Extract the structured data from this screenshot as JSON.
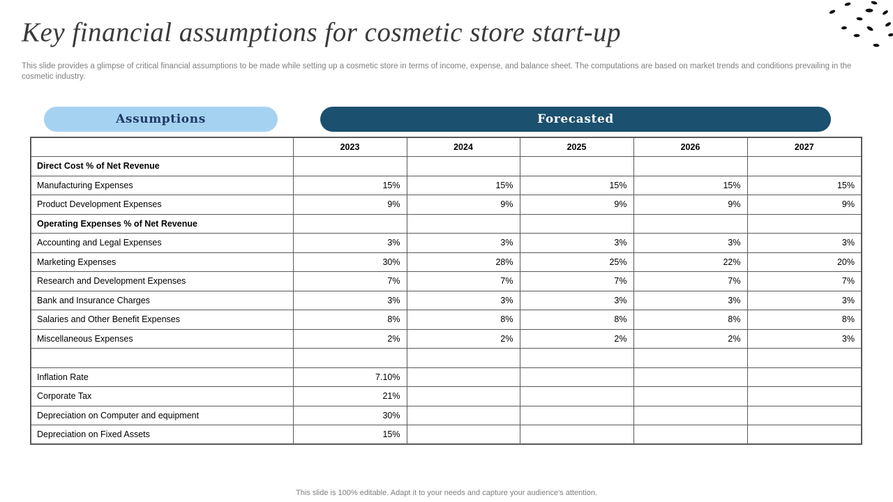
{
  "slide": {
    "title": "Key financial assumptions for cosmetic store start-up",
    "subtitle": "This slide provides a glimpse of critical financial assumptions to be made while setting up a cosmetic store in terms of income, expense, and balance sheet. The computations are based on market trends and conditions prevailing in the cosmetic industry.",
    "footer": "This slide is 100% editable. Adapt it to your needs and capture your audience's attention."
  },
  "legend": {
    "assumptions_label": "Assumptions",
    "forecasted_label": "Forecasted"
  },
  "colors": {
    "light_pill_bg": "#A6D2F2",
    "light_pill_text": "#1F3864",
    "dark_pill_bg": "#1B506F",
    "dark_pill_text": "#FDFDFD",
    "title_color": "#3B3B3B",
    "muted_text": "#7F7F7F",
    "table_border": "#595959"
  },
  "chart_data": {
    "type": "table",
    "columns": [
      "",
      "2023",
      "2024",
      "2025",
      "2026",
      "2027"
    ],
    "rows": [
      {
        "label": "Direct Cost % of Net Revenue",
        "bold": true,
        "values": [
          "",
          "",
          "",
          "",
          ""
        ]
      },
      {
        "label": "Manufacturing Expenses",
        "bold": false,
        "values": [
          "15%",
          "15%",
          "15%",
          "15%",
          "15%"
        ]
      },
      {
        "label": "Product Development Expenses",
        "bold": false,
        "values": [
          "9%",
          "9%",
          "9%",
          "9%",
          "9%"
        ]
      },
      {
        "label": "Operating Expenses % of Net Revenue",
        "bold": true,
        "values": [
          "",
          "",
          "",
          "",
          ""
        ]
      },
      {
        "label": "Accounting and Legal Expenses",
        "bold": false,
        "values": [
          "3%",
          "3%",
          "3%",
          "3%",
          "3%"
        ]
      },
      {
        "label": "Marketing Expenses",
        "bold": false,
        "values": [
          "30%",
          "28%",
          "25%",
          "22%",
          "20%"
        ]
      },
      {
        "label": "Research and Development Expenses",
        "bold": false,
        "values": [
          "7%",
          "7%",
          "7%",
          "7%",
          "7%"
        ]
      },
      {
        "label": "Bank and Insurance Charges",
        "bold": false,
        "values": [
          "3%",
          "3%",
          "3%",
          "3%",
          "3%"
        ]
      },
      {
        "label": "Salaries and Other Benefit Expenses",
        "bold": false,
        "values": [
          "8%",
          "8%",
          "8%",
          "8%",
          "8%"
        ]
      },
      {
        "label": "Miscellaneous Expenses",
        "bold": false,
        "values": [
          "2%",
          "2%",
          "2%",
          "2%",
          "3%"
        ]
      },
      {
        "label": "",
        "bold": false,
        "values": [
          "",
          "",
          "",
          "",
          ""
        ]
      },
      {
        "label": "Inflation Rate",
        "bold": false,
        "values": [
          "7.10%",
          "",
          "",
          "",
          ""
        ]
      },
      {
        "label": "Corporate Tax",
        "bold": false,
        "values": [
          "21%",
          "",
          "",
          "",
          ""
        ]
      },
      {
        "label": "Depreciation on Computer and equipment",
        "bold": false,
        "values": [
          "30%",
          "",
          "",
          "",
          ""
        ]
      },
      {
        "label": "Depreciation on Fixed Assets",
        "bold": false,
        "values": [
          "15%",
          "",
          "",
          "",
          ""
        ]
      }
    ]
  }
}
